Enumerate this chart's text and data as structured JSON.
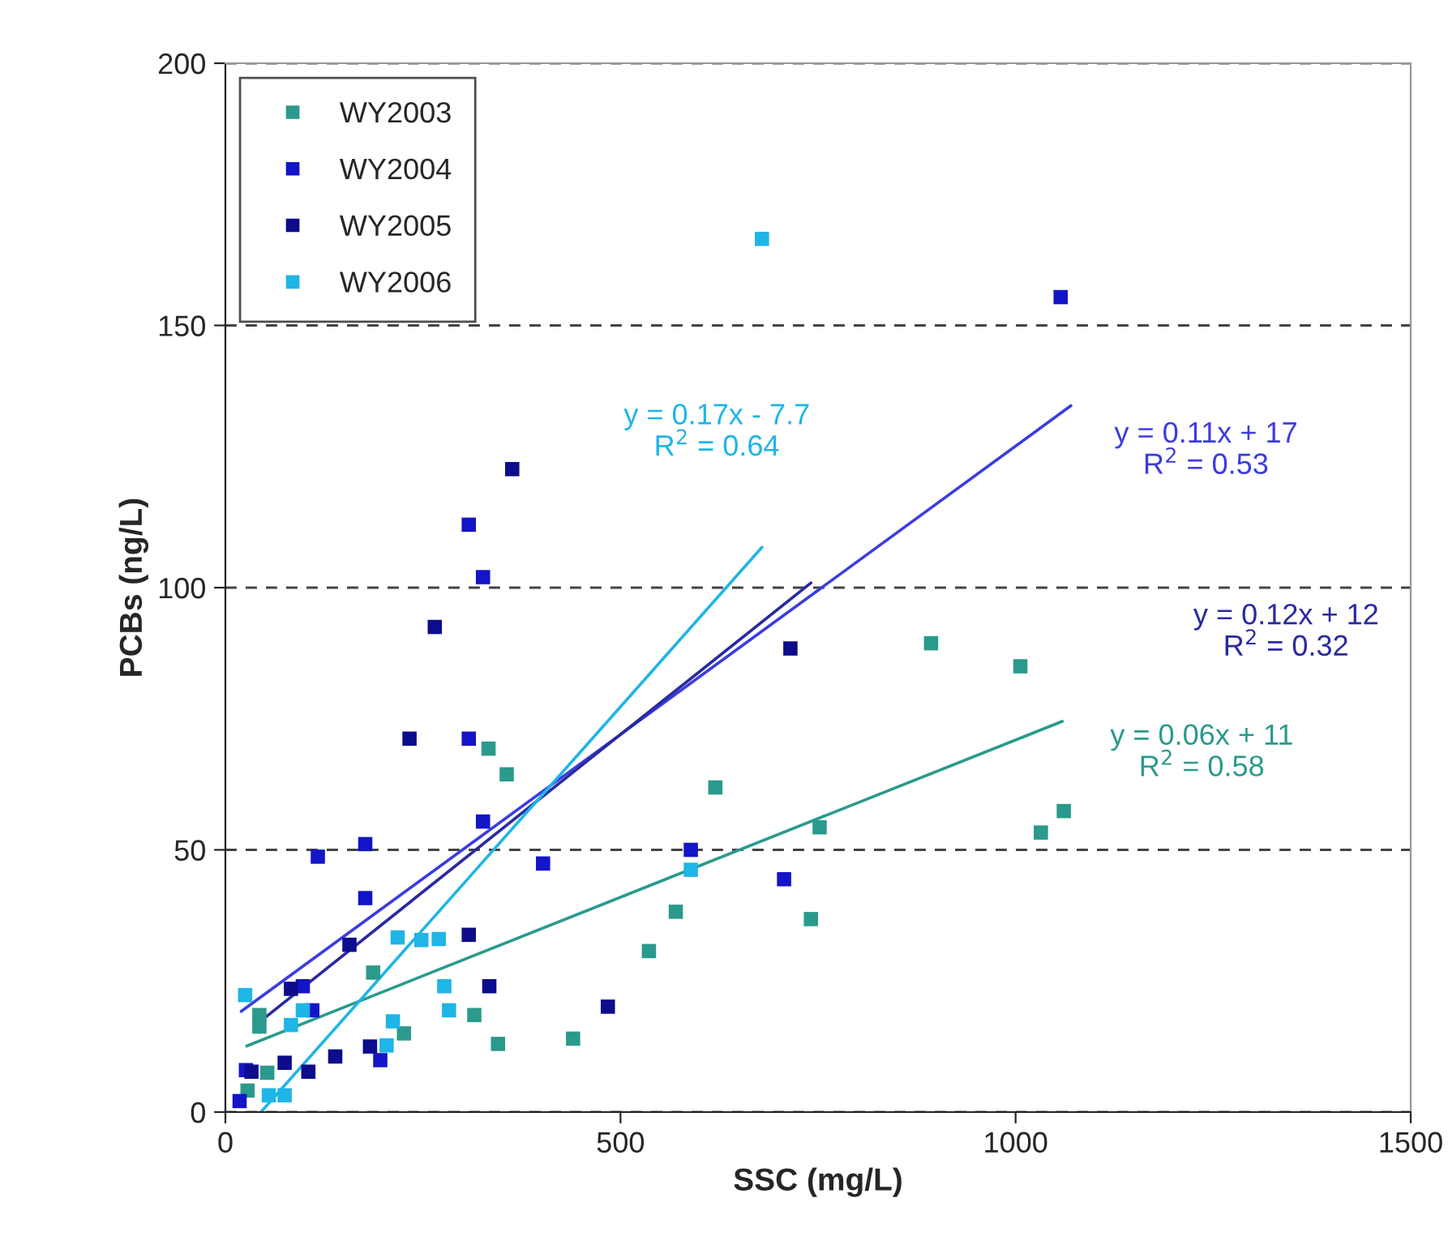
{
  "chart_data": {
    "type": "scatter",
    "xlabel": "SSC (mg/L)",
    "ylabel": "PCBs (ng/L)",
    "xlim": [
      0,
      1500
    ],
    "ylim": [
      0,
      200
    ],
    "xticks": [
      0,
      500,
      1000,
      1500
    ],
    "yticks": [
      0,
      50,
      100,
      150,
      200
    ],
    "grid": "y",
    "legend": "top left",
    "marker": "square",
    "series": [
      {
        "name": "WY2003",
        "color": "#2a9a8c",
        "x": [
          333,
          356,
          620,
          893,
          1006,
          752,
          1032,
          1061,
          741,
          570,
          536,
          187,
          43,
          43,
          315,
          226,
          345,
          440,
          53,
          28
        ],
        "values": [
          69.3,
          64.4,
          61.9,
          89.4,
          85.0,
          54.3,
          53.3,
          57.4,
          36.8,
          38.2,
          30.7,
          26.6,
          18.5,
          16.3,
          18.5,
          15.0,
          13.0,
          14.0,
          7.5,
          4.1
        ]
      },
      {
        "name": "WY2004",
        "color": "#1414c8",
        "x": [
          308,
          326,
          308,
          326,
          117,
          177,
          402,
          589,
          177,
          98,
          110,
          196,
          26,
          18,
          1057,
          707
        ],
        "values": [
          112,
          102,
          71.2,
          55.4,
          48.7,
          51.1,
          47.4,
          50.0,
          40.8,
          24.0,
          19.4,
          9.9,
          8.0,
          2.1,
          155.4,
          44.4
        ]
      },
      {
        "name": "WY2005",
        "color": "#0c0c8c",
        "x": [
          265,
          233,
          308,
          157,
          334,
          83,
          484,
          183,
          139,
          75,
          105,
          33,
          715,
          363
        ],
        "values": [
          92.5,
          71.2,
          33.8,
          31.9,
          24.0,
          23.5,
          20.1,
          12.5,
          10.6,
          9.4,
          7.7,
          7.7,
          88.4,
          122.6
        ]
      },
      {
        "name": "WY2006",
        "color": "#1fb5e6",
        "x": [
          589,
          218,
          248,
          270,
          277,
          25,
          98,
          83,
          283,
          212,
          204,
          55,
          75,
          679
        ],
        "values": [
          46.2,
          33.3,
          32.8,
          33.0,
          24.0,
          22.3,
          19.4,
          16.6,
          19.4,
          17.3,
          12.7,
          3.2,
          3.2,
          166.5
        ]
      },
      {
        "type": "line",
        "name": "y = 0.06x + 11\nR$^{2}$ = 0.58",
        "color": "#2a9a8c",
        "marker": "none",
        "x": [
          27,
          1059
        ],
        "values": [
          12.6,
          74.5
        ]
      },
      {
        "type": "line",
        "name": "y = 0.11x + 17\nR$^{2}$ = 0.53",
        "color": "#3c3ce0",
        "marker": "none",
        "x": [
          20,
          1070
        ],
        "values": [
          19.2,
          134.7
        ]
      },
      {
        "type": "line",
        "name": "y = 0.12x + 12\nR$^{2}$ = 0.32",
        "color": "#2a2aa0",
        "marker": "none",
        "x": [
          40,
          741
        ],
        "values": [
          16.8,
          100.9
        ]
      },
      {
        "type": "line",
        "name": "y = 0.17x - 7.7\nR$^{2}$ = 0.64",
        "color": "#1fb5e6",
        "marker": "none",
        "x": [
          45,
          679
        ],
        "values": [
          0,
          107.7
        ]
      }
    ]
  }
}
